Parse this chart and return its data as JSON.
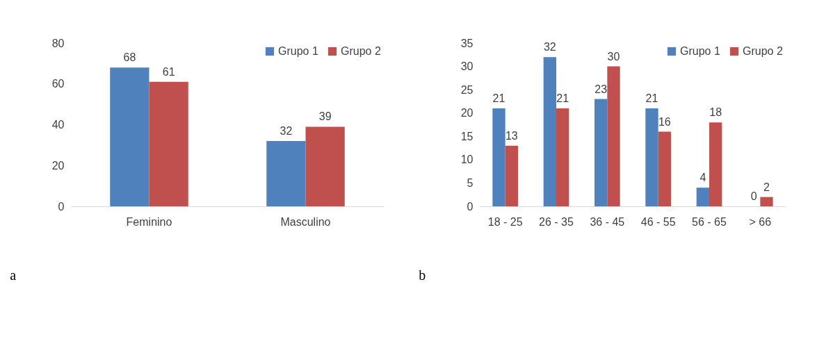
{
  "chart_data": [
    {
      "type": "bar",
      "categories": [
        "Feminino",
        "Masculino"
      ],
      "series": [
        {
          "name": "Grupo 1",
          "color": "#4f81bd",
          "values": [
            68,
            32
          ]
        },
        {
          "name": "Grupo 2",
          "color": "#c0504d",
          "values": [
            61,
            39
          ]
        }
      ],
      "ylim": [
        0,
        80
      ],
      "yticks": [
        0,
        20,
        40,
        60,
        80
      ],
      "grid": false,
      "legend": "top right",
      "data_labels": true,
      "annotations": [
        "a"
      ]
    },
    {
      "type": "bar",
      "categories": [
        "18 - 25",
        "26 - 35",
        "36 - 45",
        "46 - 55",
        "56 - 65",
        "> 66"
      ],
      "series": [
        {
          "name": "Grupo 1",
          "color": "#4f81bd",
          "values": [
            21,
            32,
            23,
            21,
            4,
            0
          ]
        },
        {
          "name": "Grupo 2",
          "color": "#c0504d",
          "values": [
            13,
            21,
            30,
            16,
            18,
            2
          ]
        }
      ],
      "ylim": [
        0,
        35
      ],
      "yticks": [
        0,
        5,
        10,
        15,
        20,
        25,
        30,
        35
      ],
      "grid": false,
      "legend": "top right",
      "data_labels": true,
      "annotations": [
        "b"
      ]
    }
  ]
}
